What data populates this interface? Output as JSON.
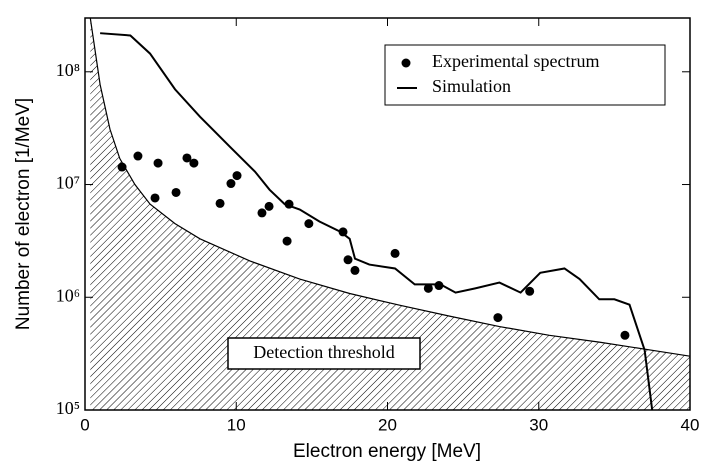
{
  "chart_data": {
    "type": "line",
    "x_label": "Electron energy [MeV]",
    "y_label": "Number of electron [1/MeV]",
    "log_y": true,
    "xlim": [
      0,
      40
    ],
    "xticks": [
      0,
      10,
      20,
      30,
      40
    ],
    "ylim": [
      100000,
      300000000
    ],
    "yticks": [
      {
        "value": 100000,
        "label": "10⁵"
      },
      {
        "value": 1000000,
        "label": "10⁶"
      },
      {
        "value": 10000000,
        "label": "10⁷"
      },
      {
        "value": 100000000,
        "label": "10⁸"
      }
    ],
    "legend": "top-right",
    "series": [
      {
        "name": "Experimental spectrum",
        "style": "points",
        "color": "#000000",
        "x": [
          2.45,
          3.5,
          4.83,
          4.63,
          6.02,
          6.74,
          7.2,
          8.93,
          9.65,
          10.05,
          11.7,
          12.17,
          13.49,
          13.36,
          14.8,
          17.06,
          17.39,
          17.85,
          20.5,
          22.7,
          23.4,
          27.3,
          29.4,
          35.7
        ],
        "values": [
          14300000,
          17900000,
          15500000,
          7600000,
          8500000,
          17200000,
          15500000,
          6800000,
          10200000,
          12000000,
          5600000,
          6400000,
          6700000,
          3150000,
          4500000,
          3800000,
          2150000,
          1730000,
          2450000,
          1200000,
          1270000,
          660000,
          1130000,
          460000
        ]
      },
      {
        "name": "Simulation",
        "style": "line",
        "color": "#000000",
        "x": [
          1,
          3,
          4.3,
          5.95,
          7.6,
          9.6,
          11.24,
          12.2,
          13.2,
          14.2,
          15.5,
          16.9,
          17.5,
          17.85,
          18.8,
          20.5,
          21.8,
          23.5,
          24.5,
          25.8,
          27.4,
          28.8,
          30.1,
          31.7,
          32.7,
          34,
          35,
          36,
          37,
          37.5
        ],
        "values": [
          220000000,
          210000000,
          145000000,
          70000000,
          40000000,
          21500000,
          13000000,
          9000000,
          6700000,
          6000000,
          4700000,
          3800000,
          3300000,
          2200000,
          1950000,
          1800000,
          1300000,
          1300000,
          1100000,
          1200000,
          1350000,
          1100000,
          1650000,
          1800000,
          1450000,
          960000,
          960000,
          860000,
          340000,
          100000
        ]
      }
    ],
    "threshold": {
      "label": "Detection threshold",
      "x": [
        0.35,
        1,
        1.65,
        2.3,
        3.3,
        4.3,
        5.95,
        7.6,
        10.9,
        14.2,
        17.5,
        20.8,
        24.1,
        27.4,
        30.7,
        34,
        37.4,
        40
      ],
      "values": [
        300000000,
        77000000,
        31000000,
        17000000,
        10000000,
        6700000,
        4500000,
        3300000,
        2100000,
        1450000,
        1080000,
        850000,
        680000,
        550000,
        460000,
        400000,
        340000,
        300000
      ]
    }
  }
}
